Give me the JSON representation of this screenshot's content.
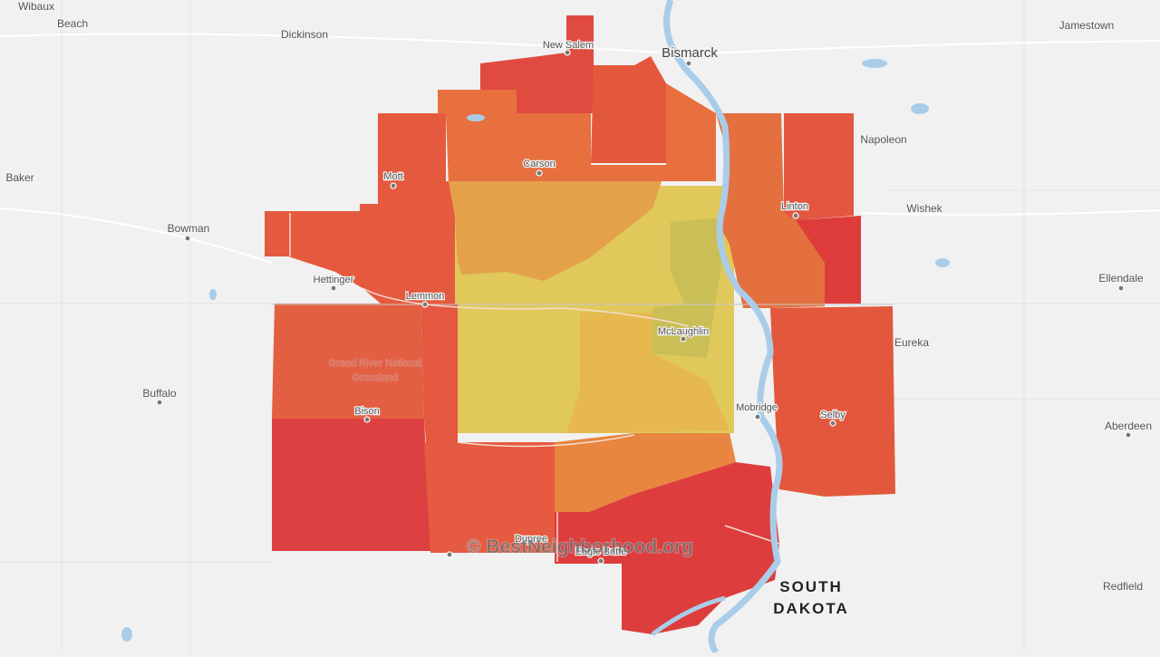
{
  "map": {
    "places": [
      "Wibaux",
      "Beach",
      "Dickinson",
      "New Salem",
      "Bismarck",
      "Jamestown",
      "Baker",
      "Mott",
      "Carson",
      "Napoleon",
      "Bowman",
      "Linton",
      "Wishek",
      "Hettinger",
      "Lemmon",
      "Ellendale",
      "McLaughlin",
      "Eureka",
      "Buffalo",
      "Bison",
      "Mobridge",
      "Selby",
      "Aberdeen",
      "Dupree",
      "Eagle Butte",
      "Redfield"
    ],
    "landmark": {
      "line1": "Grand River National",
      "line2": "Grassland"
    },
    "state_label": {
      "line1": "SOUTH",
      "line2": "DAKOTA"
    },
    "watermark": "© BestNeighborhood.org"
  }
}
